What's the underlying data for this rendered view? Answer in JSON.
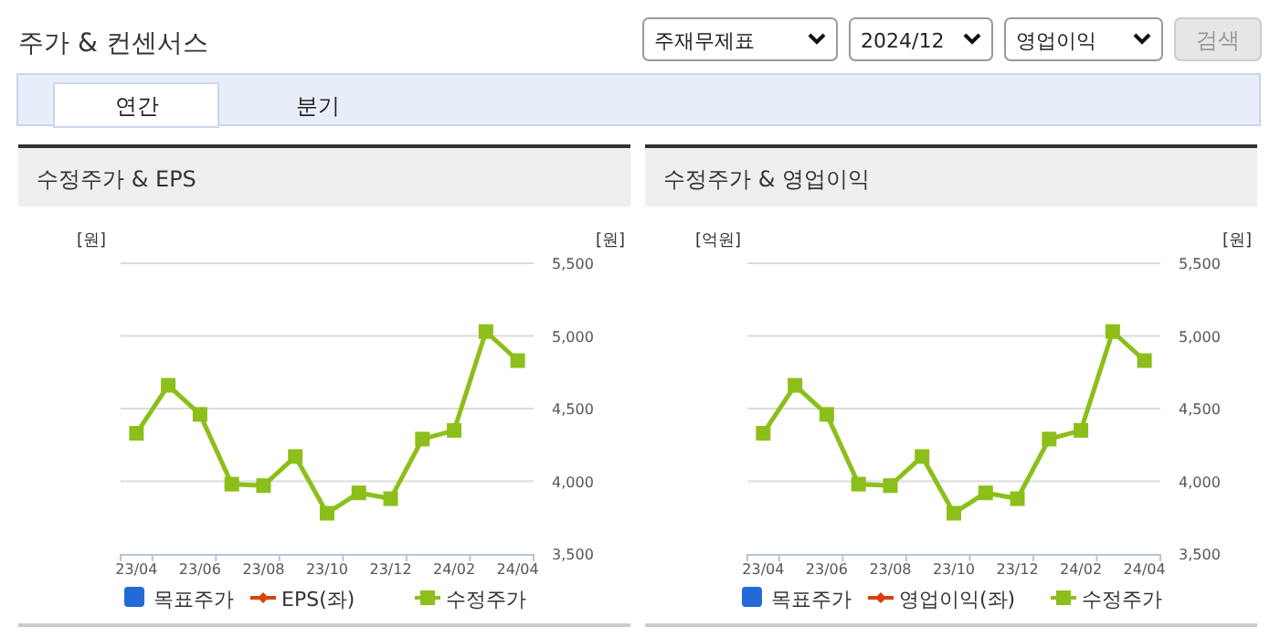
{
  "chart_data": [
    {
      "type": "other",
      "title": "주가 & 컨센서스",
      "annotations": [
        "주재무제표",
        "2024/12",
        "영업이익",
        "검색",
        "연간",
        "분기"
      ]
    },
    {
      "type": "line",
      "title": "수정주가 & EPS",
      "ylabel": "[원]",
      "y2label": "[원]",
      "categories": [
        "23/04",
        null,
        "23/06",
        null,
        "23/08",
        null,
        "23/10",
        null,
        "23/12",
        null,
        "24/02",
        null,
        "24/04"
      ],
      "y2lim": [
        3500,
        5500
      ],
      "y2ticks": [
        {
          "value": 3500,
          "label": "3,500"
        },
        {
          "value": 4000,
          "label": "4,000"
        },
        {
          "value": 4500,
          "label": "4,500"
        },
        {
          "value": 5000,
          "label": "5,000"
        },
        {
          "value": 5500,
          "label": "5,500"
        }
      ],
      "grid": "y",
      "legend": "bottom",
      "series": [
        {
          "name": "목표주가",
          "type": "bar",
          "color": "#2369d8",
          "values": [
            null,
            null,
            null,
            null,
            null,
            null,
            null,
            null,
            null,
            null,
            null,
            null,
            null
          ]
        },
        {
          "name": "EPS(좌)",
          "type": "line",
          "marker": "diamond",
          "color": "#d9410f",
          "values": [
            null,
            null,
            null,
            null,
            null,
            null,
            null,
            null,
            null,
            null,
            null,
            null,
            null
          ]
        },
        {
          "name": "수정주가",
          "type": "line",
          "marker": "square",
          "axis": "y2",
          "color": "#8cbf1a",
          "values": [
            4330,
            4660,
            4460,
            3980,
            3970,
            4170,
            3780,
            3920,
            3880,
            4290,
            4350,
            5030,
            4830
          ]
        }
      ]
    },
    {
      "type": "line",
      "title": "수정주가 & 영업이익",
      "ylabel": "[억원]",
      "y2label": "[원]",
      "categories": [
        "23/04",
        null,
        "23/06",
        null,
        "23/08",
        null,
        "23/10",
        null,
        "23/12",
        null,
        "24/02",
        null,
        "24/04"
      ],
      "y2lim": [
        3500,
        5500
      ],
      "y2ticks": [
        {
          "value": 3500,
          "label": "3,500"
        },
        {
          "value": 4000,
          "label": "4,000"
        },
        {
          "value": 4500,
          "label": "4,500"
        },
        {
          "value": 5000,
          "label": "5,000"
        },
        {
          "value": 5500,
          "label": "5,500"
        }
      ],
      "grid": "y",
      "legend": "bottom",
      "series": [
        {
          "name": "목표주가",
          "type": "bar",
          "color": "#2369d8",
          "values": [
            null,
            null,
            null,
            null,
            null,
            null,
            null,
            null,
            null,
            null,
            null,
            null,
            null
          ]
        },
        {
          "name": "영업이익(좌)",
          "type": "line",
          "marker": "diamond",
          "color": "#d9410f",
          "values": [
            null,
            null,
            null,
            null,
            null,
            null,
            null,
            null,
            null,
            null,
            null,
            null,
            null
          ]
        },
        {
          "name": "수정주가",
          "type": "line",
          "marker": "square",
          "axis": "y2",
          "color": "#8cbf1a",
          "values": [
            4330,
            4660,
            4460,
            3980,
            3970,
            4170,
            3780,
            3920,
            3880,
            4290,
            4350,
            5030,
            4830
          ]
        }
      ]
    }
  ]
}
